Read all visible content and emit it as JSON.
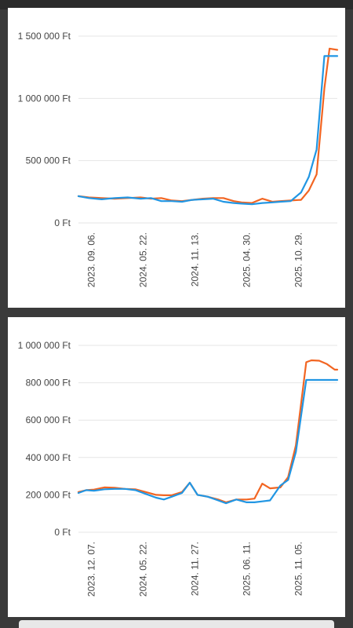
{
  "colors": {
    "orange": "#f26522",
    "blue": "#2196e3",
    "grid": "#e6e6e6",
    "label": "#444444"
  },
  "chart_data": [
    {
      "type": "line",
      "ylim": [
        0,
        1500000
      ],
      "yticks": [
        0,
        500000,
        1000000,
        1500000
      ],
      "ytick_labels": [
        "0 Ft",
        "500 000 Ft",
        "1 000 000 Ft",
        "1 500 000 Ft"
      ],
      "xlim": [
        0,
        100
      ],
      "xticks": [
        5,
        25,
        45,
        65,
        85
      ],
      "xtick_labels": [
        "2023. 09. 06.",
        "2024. 05. 22.",
        "2024. 11. 13.",
        "2025. 04. 30.",
        "2025. 10. 29."
      ],
      "grid": true,
      "series": [
        {
          "color": "orange",
          "x": [
            0,
            4,
            9,
            14,
            19,
            24,
            28,
            32,
            36,
            40,
            44,
            48,
            52,
            56,
            60,
            63,
            67,
            71,
            75,
            78,
            82,
            86,
            89,
            92,
            95,
            97,
            100
          ],
          "y": [
            215000,
            205000,
            200000,
            195000,
            200000,
            205000,
            195000,
            200000,
            180000,
            175000,
            185000,
            195000,
            200000,
            200000,
            175000,
            165000,
            160000,
            195000,
            170000,
            175000,
            180000,
            185000,
            260000,
            390000,
            1080000,
            1400000,
            1390000
          ]
        },
        {
          "color": "blue",
          "x": [
            0,
            4,
            9,
            14,
            19,
            24,
            28,
            32,
            36,
            40,
            44,
            48,
            52,
            56,
            60,
            63,
            67,
            71,
            75,
            78,
            82,
            86,
            89,
            92,
            95,
            97,
            100
          ],
          "y": [
            215000,
            200000,
            190000,
            200000,
            205000,
            195000,
            200000,
            175000,
            175000,
            170000,
            185000,
            190000,
            195000,
            170000,
            160000,
            155000,
            150000,
            160000,
            165000,
            170000,
            175000,
            245000,
            370000,
            590000,
            1340000,
            1340000,
            1340000
          ]
        }
      ]
    },
    {
      "type": "line",
      "ylim": [
        0,
        1000000
      ],
      "yticks": [
        0,
        200000,
        400000,
        600000,
        800000,
        1000000
      ],
      "ytick_labels": [
        "0 Ft",
        "200 000 Ft",
        "400 000 Ft",
        "600 000 Ft",
        "800 000 Ft",
        "1 000 000 Ft"
      ],
      "xlim": [
        0,
        100
      ],
      "xticks": [
        5,
        25,
        45,
        65,
        85
      ],
      "xtick_labels": [
        "2023. 12. 07.",
        "2024. 05. 22.",
        "2024. 11. 27.",
        "2025. 06. 11.",
        "2025. 11. 05."
      ],
      "grid": true,
      "series": [
        {
          "color": "orange",
          "x": [
            0,
            3,
            6,
            10,
            14,
            18,
            22,
            26,
            30,
            33,
            36,
            40,
            43,
            46,
            50,
            54,
            57,
            61,
            65,
            68,
            71,
            74,
            78,
            81,
            84,
            88,
            90,
            93,
            96,
            99,
            100
          ],
          "y": [
            215000,
            225000,
            228000,
            240000,
            238000,
            232000,
            230000,
            215000,
            200000,
            198000,
            198000,
            215000,
            265000,
            200000,
            190000,
            175000,
            160000,
            175000,
            175000,
            180000,
            260000,
            235000,
            240000,
            295000,
            465000,
            910000,
            920000,
            918000,
            900000,
            870000,
            870000
          ],
          "note": ""
        },
        {
          "color": "blue",
          "x": [
            0,
            3,
            6,
            10,
            14,
            18,
            22,
            26,
            30,
            33,
            36,
            40,
            43,
            46,
            50,
            54,
            57,
            61,
            65,
            68,
            71,
            74,
            78,
            81,
            84,
            88,
            90,
            93,
            96,
            99,
            100
          ],
          "y": [
            210000,
            225000,
            222000,
            230000,
            232000,
            232000,
            225000,
            205000,
            185000,
            175000,
            190000,
            210000,
            265000,
            200000,
            190000,
            170000,
            155000,
            175000,
            160000,
            160000,
            165000,
            170000,
            250000,
            280000,
            430000,
            815000,
            815000,
            815000,
            815000,
            815000,
            815000
          ]
        }
      ]
    }
  ]
}
